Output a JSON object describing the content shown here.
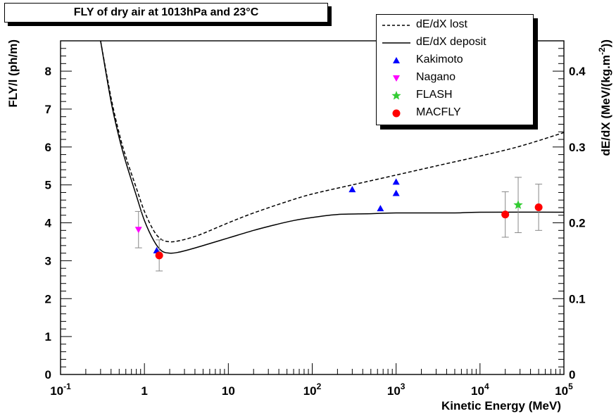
{
  "chart_data": {
    "type": "scatter",
    "title": "FLY of dry air at 1013hPa and 23°C",
    "xlabel": "Kinetic Energy (MeV)",
    "ylabel": "FLY/l (ph/m)",
    "y2label": "dE/dX (MeV/(kg.m^-2))",
    "x_scale": "log",
    "xlim": [
      0.1,
      100000
    ],
    "ylim": [
      0,
      8.8
    ],
    "y2lim": [
      0,
      0.44
    ],
    "x_ticks": [
      {
        "value": 0.1,
        "base": "10",
        "exp": "-1"
      },
      {
        "value": 1,
        "base": "1",
        "exp": ""
      },
      {
        "value": 10,
        "base": "10",
        "exp": ""
      },
      {
        "value": 100,
        "base": "10",
        "exp": "2"
      },
      {
        "value": 1000,
        "base": "10",
        "exp": "3"
      },
      {
        "value": 10000,
        "base": "10",
        "exp": "4"
      },
      {
        "value": 100000,
        "base": "10",
        "exp": "5"
      }
    ],
    "y_ticks": [
      "0",
      "1",
      "2",
      "3",
      "4",
      "5",
      "6",
      "7",
      "8"
    ],
    "y2_ticks": [
      "0",
      "0.1",
      "0.2",
      "0.3",
      "0.4"
    ],
    "grid": false,
    "legend": {
      "placement": "top-right",
      "entries": [
        "dE/dX lost",
        "dE/dX deposit",
        "Kakimoto",
        "Nagano",
        "FLASH",
        "MACFLY"
      ]
    },
    "series": [
      {
        "name": "dE/dX lost",
        "style": "dashed-line",
        "axis": "right",
        "x": [
          0.3,
          0.4,
          0.5,
          0.6,
          0.8,
          1.0,
          1.3,
          1.6,
          2.0,
          2.5,
          3.5,
          5,
          10,
          20,
          50,
          100,
          300,
          1000,
          3000,
          10000,
          30000,
          100000
        ],
        "y": [
          0.44,
          0.365,
          0.318,
          0.287,
          0.246,
          0.215,
          0.189,
          0.178,
          0.175,
          0.176,
          0.18,
          0.186,
          0.2,
          0.213,
          0.228,
          0.238,
          0.25,
          0.263,
          0.275,
          0.288,
          0.301,
          0.319
        ]
      },
      {
        "name": "dE/dX deposit",
        "style": "solid-line",
        "axis": "right",
        "x": [
          0.3,
          0.4,
          0.5,
          0.6,
          0.8,
          1.0,
          1.3,
          1.6,
          2.0,
          2.5,
          3.5,
          5,
          10,
          20,
          35,
          60,
          100,
          200,
          500,
          1000,
          5000,
          10000,
          100000
        ],
        "y": [
          0.44,
          0.36,
          0.312,
          0.28,
          0.236,
          0.203,
          0.176,
          0.163,
          0.16,
          0.161,
          0.165,
          0.17,
          0.18,
          0.19,
          0.197,
          0.203,
          0.207,
          0.211,
          0.212,
          0.213,
          0.213,
          0.214,
          0.214
        ]
      },
      {
        "name": "Kakimoto",
        "marker": "triangle-up",
        "color": "#0000ff",
        "axis": "left",
        "x": [
          1.4,
          300,
          650,
          1000,
          1000
        ],
        "y": [
          3.27,
          4.88,
          4.38,
          5.08,
          4.78
        ]
      },
      {
        "name": "Nagano",
        "marker": "triangle-down",
        "color": "#ff00ff",
        "axis": "left",
        "x": [
          0.85
        ],
        "y": [
          3.82
        ],
        "yerr": [
          0.48
        ]
      },
      {
        "name": "FLASH",
        "marker": "star",
        "color": "#33cc33",
        "axis": "left",
        "x": [
          28500
        ],
        "y": [
          4.47
        ],
        "yerr": [
          0.73
        ]
      },
      {
        "name": "MACFLY",
        "marker": "circle",
        "color": "#ff0000",
        "axis": "left",
        "x": [
          1.5,
          20000,
          50000
        ],
        "y": [
          3.14,
          4.22,
          4.41
        ],
        "yerr": [
          0.41,
          0.6,
          0.61
        ]
      }
    ],
    "colors": {
      "line": "#000000",
      "errorbar": "#888888"
    }
  }
}
